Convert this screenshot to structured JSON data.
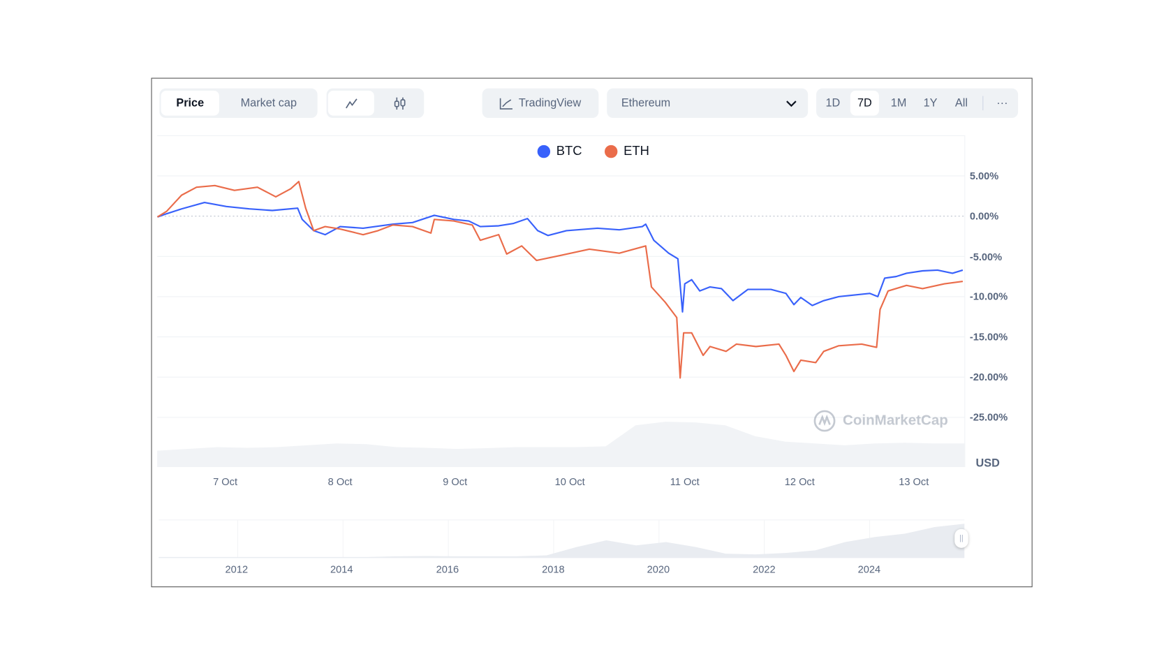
{
  "toolbar": {
    "metric_tabs": [
      {
        "label": "Price",
        "active": true
      },
      {
        "label": "Market cap",
        "active": false
      }
    ],
    "chart_types": [
      {
        "icon": "line-chart-icon",
        "active": true
      },
      {
        "icon": "candlestick-icon",
        "active": false
      }
    ],
    "tradingview_label": "TradingView",
    "compare_select": {
      "value": "Ethereum"
    },
    "ranges": [
      {
        "label": "1D"
      },
      {
        "label": "7D",
        "active": true
      },
      {
        "label": "1M"
      },
      {
        "label": "1Y"
      },
      {
        "label": "All"
      }
    ],
    "more_label": "···"
  },
  "watermark": "CoinMarketCap",
  "chart_data": {
    "type": "line",
    "title": "",
    "xlabel": "",
    "ylabel": "",
    "unit_label": "USD",
    "x_unit": "days since 7 Oct 00:00",
    "xlim": [
      -0.59,
      6.42
    ],
    "ylim": [
      -27.5,
      8.5
    ],
    "grid": true,
    "legend": "top-center",
    "x_ticks": [
      {
        "value": 0,
        "label": "7 Oct"
      },
      {
        "value": 1,
        "label": "8 Oct"
      },
      {
        "value": 2,
        "label": "9 Oct"
      },
      {
        "value": 3,
        "label": "10 Oct"
      },
      {
        "value": 4,
        "label": "11 Oct"
      },
      {
        "value": 5,
        "label": "12 Oct"
      },
      {
        "value": 6,
        "label": "13 Oct"
      }
    ],
    "y_ticks": [
      {
        "value": 5,
        "label": "5.00%"
      },
      {
        "value": 0,
        "label": "0.00%"
      },
      {
        "value": -5,
        "label": "-5.00%"
      },
      {
        "value": -10,
        "label": "-10.00%"
      },
      {
        "value": -15,
        "label": "-15.00%"
      },
      {
        "value": -20,
        "label": "-20.00%"
      },
      {
        "value": -25,
        "label": "-25.00%"
      }
    ],
    "series": [
      {
        "name": "BTC",
        "color": "#3861fb",
        "x": [
          -0.59,
          -0.51,
          -0.38,
          -0.18,
          0.01,
          0.21,
          0.41,
          0.63,
          0.67,
          0.77,
          0.87,
          1.0,
          1.2,
          1.46,
          1.63,
          1.82,
          1.99,
          2.12,
          2.22,
          2.38,
          2.51,
          2.63,
          2.72,
          2.81,
          2.97,
          3.24,
          3.43,
          3.63,
          3.66,
          3.73,
          3.86,
          3.94,
          3.98,
          4.0,
          4.06,
          4.13,
          4.22,
          4.32,
          4.42,
          4.55,
          4.75,
          4.88,
          4.95,
          5.01,
          5.11,
          5.21,
          5.34,
          5.47,
          5.61,
          5.68,
          5.74,
          5.84,
          5.93,
          6.07,
          6.2,
          6.33,
          6.42
        ],
        "y": [
          -0.1,
          0.3,
          0.9,
          1.7,
          1.2,
          0.9,
          0.7,
          1.0,
          -0.4,
          -1.8,
          -2.3,
          -1.3,
          -1.5,
          -1.0,
          -0.8,
          0.1,
          -0.4,
          -0.6,
          -1.3,
          -1.2,
          -0.9,
          -0.3,
          -1.8,
          -2.4,
          -1.8,
          -1.5,
          -1.7,
          -1.3,
          -1.0,
          -3.0,
          -4.6,
          -5.3,
          -11.9,
          -8.4,
          -7.9,
          -9.3,
          -8.8,
          -9.0,
          -10.5,
          -9.1,
          -9.1,
          -9.6,
          -11.0,
          -10.1,
          -11.1,
          -10.5,
          -10.0,
          -9.8,
          -9.6,
          -10.0,
          -7.7,
          -7.5,
          -7.1,
          -6.8,
          -6.7,
          -7.1,
          -6.7
        ]
      },
      {
        "name": "ETH",
        "color": "#ea6c4a",
        "x": [
          -0.59,
          -0.51,
          -0.38,
          -0.25,
          -0.09,
          0.08,
          0.28,
          0.44,
          0.57,
          0.64,
          0.7,
          0.77,
          0.87,
          1.0,
          1.2,
          1.33,
          1.46,
          1.63,
          1.79,
          1.82,
          1.99,
          2.15,
          2.22,
          2.38,
          2.45,
          2.58,
          2.71,
          2.91,
          3.17,
          3.43,
          3.66,
          3.71,
          3.83,
          3.93,
          3.96,
          3.99,
          4.06,
          4.16,
          4.22,
          4.36,
          4.45,
          4.62,
          4.82,
          4.88,
          4.95,
          5.01,
          5.14,
          5.21,
          5.34,
          5.54,
          5.67,
          5.7,
          5.77,
          5.93,
          6.07,
          6.26,
          6.42
        ],
        "y": [
          -0.1,
          0.6,
          2.6,
          3.6,
          3.8,
          3.2,
          3.6,
          2.4,
          3.4,
          4.3,
          1.0,
          -1.8,
          -1.3,
          -1.6,
          -2.3,
          -1.8,
          -1.1,
          -1.3,
          -2.1,
          -0.4,
          -0.6,
          -1.1,
          -3.0,
          -2.3,
          -4.7,
          -3.7,
          -5.5,
          -4.9,
          -4.1,
          -4.6,
          -3.7,
          -8.8,
          -10.7,
          -12.6,
          -20.1,
          -14.5,
          -14.5,
          -17.3,
          -16.2,
          -16.8,
          -15.9,
          -16.2,
          -15.9,
          -17.3,
          -19.3,
          -17.9,
          -18.2,
          -16.8,
          -16.1,
          -15.9,
          -16.3,
          -11.6,
          -9.3,
          -8.6,
          -9.0,
          -8.4,
          -8.1
        ]
      }
    ],
    "volume_relative": [
      0.2,
      0.25,
      0.3,
      0.28,
      0.3,
      0.35,
      0.4,
      0.38,
      0.3,
      0.28,
      0.25,
      0.27,
      0.3,
      0.3,
      0.3,
      0.32,
      0.9,
      1.0,
      0.98,
      0.9,
      0.6,
      0.45,
      0.4,
      0.35,
      0.4,
      0.42,
      0.4,
      0.4
    ],
    "navigator": {
      "year_ticks": [
        {
          "value": 2012,
          "label": "2012"
        },
        {
          "value": 2014,
          "label": "2014"
        },
        {
          "value": 2016,
          "label": "2016"
        },
        {
          "value": 2018,
          "label": "2018"
        },
        {
          "value": 2020,
          "label": "2020"
        },
        {
          "value": 2022,
          "label": "2022"
        },
        {
          "value": 2024,
          "label": "2024"
        }
      ],
      "xlim": [
        2010.5,
        2025.8
      ],
      "history_relative": [
        0,
        0,
        0,
        0,
        0,
        0,
        0,
        0,
        0.02,
        0.03,
        0.02,
        0.02,
        0.02,
        0.05,
        0.3,
        0.5,
        0.35,
        0.45,
        0.3,
        0.1,
        0.08,
        0.12,
        0.2,
        0.45,
        0.6,
        0.7,
        0.9,
        1.0
      ]
    }
  }
}
